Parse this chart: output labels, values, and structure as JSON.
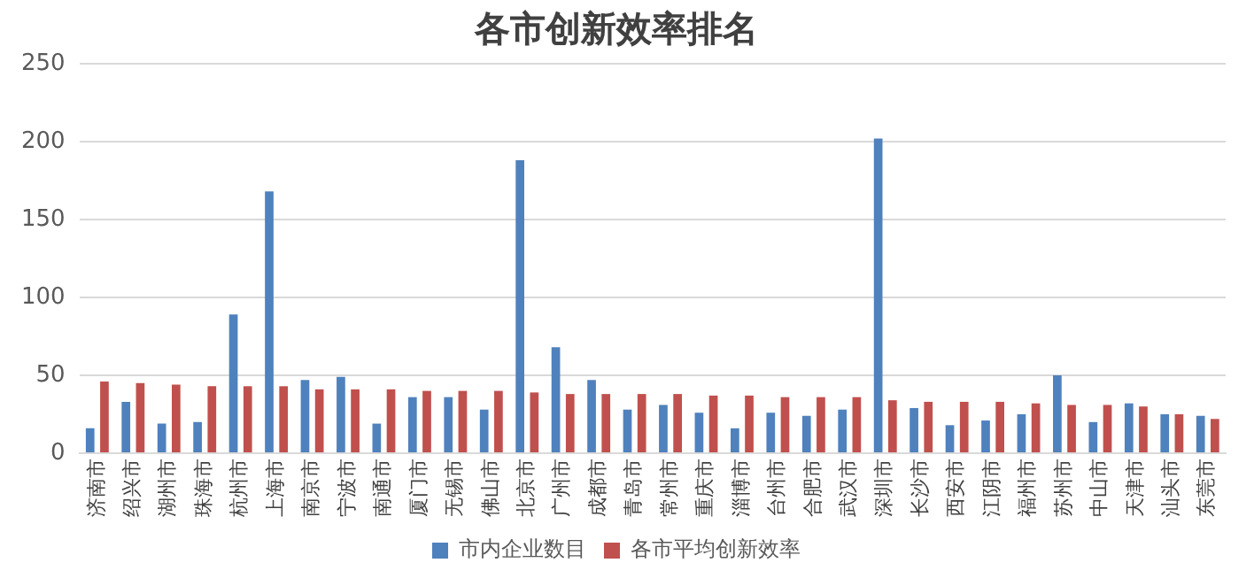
{
  "chart_data": {
    "type": "bar",
    "title": "各市创新效率排名",
    "categories": [
      "济南市",
      "绍兴市",
      "湖州市",
      "珠海市",
      "杭州市",
      "上海市",
      "南京市",
      "宁波市",
      "南通市",
      "厦门市",
      "无锡市",
      "佛山市",
      "北京市",
      "广州市",
      "成都市",
      "青岛市",
      "常州市",
      "重庆市",
      "淄博市",
      "台州市",
      "合肥市",
      "武汉市",
      "深圳市",
      "长沙市",
      "西安市",
      "江阴市",
      "福州市",
      "苏州市",
      "中山市",
      "天津市",
      "汕头市",
      "东莞市"
    ],
    "series": [
      {
        "name": "市内企业数目",
        "color": "#4f81bd",
        "values": [
          16,
          33,
          19,
          20,
          89,
          168,
          47,
          49,
          19,
          36,
          36,
          28,
          188,
          68,
          47,
          28,
          31,
          26,
          16,
          26,
          24,
          28,
          202,
          29,
          18,
          21,
          25,
          50,
          20,
          32,
          25,
          24
        ]
      },
      {
        "name": "各市平均创新效率",
        "color": "#c0504d",
        "values": [
          46,
          45,
          44,
          43,
          43,
          43,
          41,
          41,
          41,
          40,
          40,
          40,
          39,
          38,
          38,
          38,
          38,
          37,
          37,
          36,
          36,
          36,
          34,
          33,
          33,
          33,
          32,
          31,
          31,
          30,
          25,
          22
        ]
      }
    ],
    "ylim": [
      0,
      250
    ],
    "yticks": [
      0,
      50,
      100,
      150,
      200,
      250
    ],
    "grid": "y",
    "legend": "bottom"
  }
}
